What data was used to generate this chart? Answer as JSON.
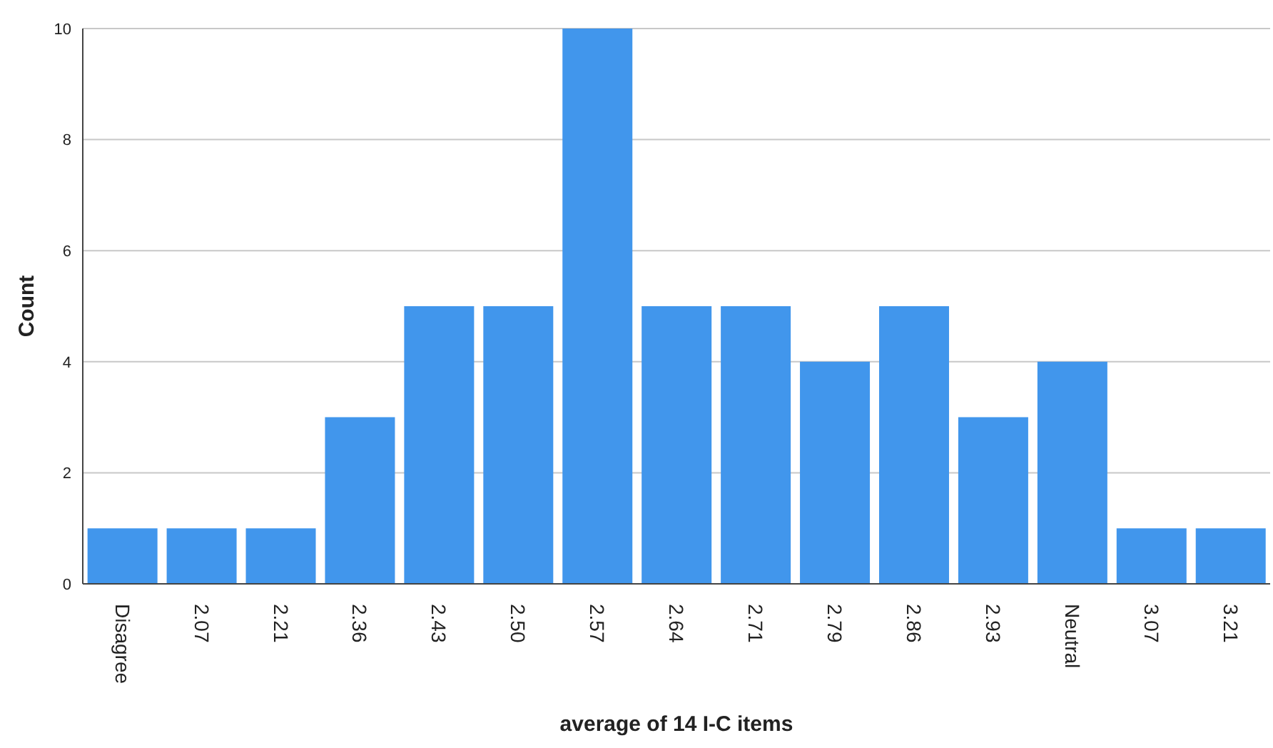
{
  "chart_data": {
    "type": "bar",
    "xlabel": "average of 14 I-C items",
    "ylabel": "Count",
    "categories": [
      "Disagree",
      "2.07",
      "2.21",
      "2.36",
      "2.43",
      "2.50",
      "2.57",
      "2.64",
      "2.71",
      "2.79",
      "2.86",
      "2.93",
      "Neutral",
      "3.07",
      "3.21"
    ],
    "values": [
      1,
      1,
      1,
      3,
      5,
      5,
      10,
      5,
      5,
      4,
      5,
      3,
      4,
      1,
      1
    ],
    "color": "#4196ec",
    "ylim": [
      0,
      10
    ],
    "yticks": [
      0,
      2,
      4,
      6,
      8,
      10
    ],
    "grid": "y"
  }
}
